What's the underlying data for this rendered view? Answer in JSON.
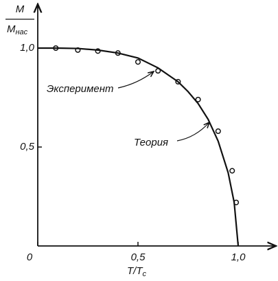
{
  "chart_data": {
    "type": "scatter-line",
    "y_label": {
      "numerator": "M",
      "denominator": "M",
      "denominator_sub": "нас"
    },
    "x_label": {
      "main": "T/T",
      "sub": "c"
    },
    "xlim": [
      0,
      1.18
    ],
    "ylim": [
      0,
      1.2
    ],
    "xticks": [
      0,
      {
        "value": 0.5,
        "label": "0,5"
      },
      {
        "value": 1.0,
        "label": "1,0"
      }
    ],
    "yticks": [
      {
        "value": 0.5,
        "label": "0,5"
      },
      {
        "value": 1.0,
        "label": "1,0"
      }
    ],
    "series": [
      {
        "name": "Эксперимент",
        "kind": "points",
        "color": "#111",
        "x": [
          0.09,
          0.2,
          0.3,
          0.4,
          0.5,
          0.6,
          0.7,
          0.8,
          0.9,
          0.97,
          0.99
        ],
        "values": [
          1.0,
          0.99,
          0.985,
          0.975,
          0.93,
          0.885,
          0.83,
          0.74,
          0.58,
          0.38,
          0.22
        ]
      },
      {
        "name": "Теория",
        "kind": "line",
        "color": "#111",
        "x": [
          0,
          0.1,
          0.2,
          0.3,
          0.4,
          0.5,
          0.6,
          0.7,
          0.75,
          0.8,
          0.85,
          0.9,
          0.95,
          0.98,
          1.0
        ],
        "values": [
          1.0,
          1.0,
          0.998,
          0.99,
          0.975,
          0.95,
          0.9,
          0.83,
          0.78,
          0.72,
          0.64,
          0.53,
          0.37,
          0.22,
          0
        ]
      }
    ]
  }
}
